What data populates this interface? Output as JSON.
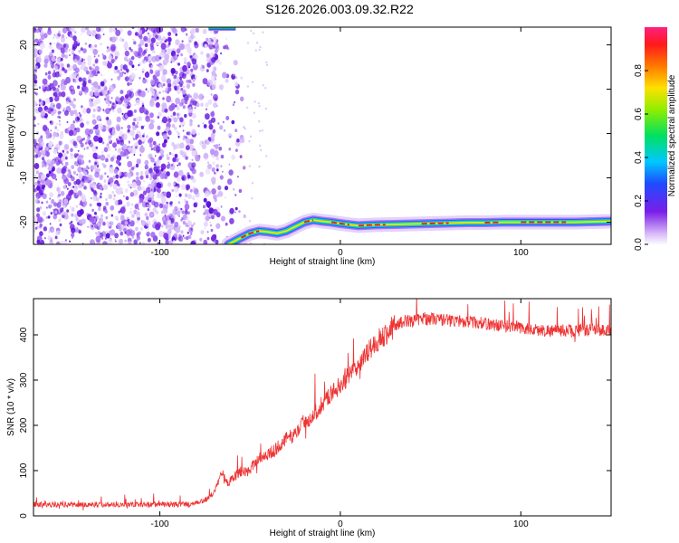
{
  "title": "S126.2026.003.09.32.R22",
  "chart_data": [
    {
      "type": "heatmap",
      "name": "spectrogram",
      "xlabel": "Height of straight line (km)",
      "ylabel": "Frequency (Hz)",
      "xlim": [
        -170,
        150
      ],
      "ylim": [
        -25,
        24
      ],
      "xticks": [
        -100,
        0,
        100
      ],
      "yticks": [
        -20,
        -10,
        0,
        10,
        20
      ],
      "noise_region_x": [
        -170,
        -68
      ],
      "signal_trace": {
        "x": [
          -62,
          -55,
          -50,
          -45,
          -40,
          -35,
          -30,
          -25,
          -20,
          -15,
          -10,
          -5,
          0,
          10,
          20,
          30,
          40,
          50,
          60,
          70,
          80,
          90,
          100,
          110,
          120,
          130,
          140,
          150
        ],
        "y": [
          -25,
          -23.5,
          -22.5,
          -22,
          -22.2,
          -22.5,
          -22,
          -21,
          -20,
          -19.5,
          -19.8,
          -20,
          -20.3,
          -20.8,
          -20.6,
          -20.5,
          -20.4,
          -20.3,
          -20.2,
          -20.1,
          -20.1,
          -20,
          -20,
          -20,
          -20,
          -20,
          -19.9,
          -19.8
        ]
      },
      "colorbar": {
        "label": "Normalized spectral amplitude",
        "range": [
          0,
          1
        ],
        "ticks": [
          "0.0",
          "0.2",
          "0.4",
          "0.6",
          "0.8"
        ]
      }
    },
    {
      "type": "line",
      "name": "snr",
      "xlabel": "Height of straight line (km)",
      "ylabel": "SNR (10 * v/v)",
      "xlim": [
        -170,
        150
      ],
      "ylim": [
        0,
        480
      ],
      "xticks": [
        -100,
        0,
        100
      ],
      "yticks": [
        0,
        100,
        200,
        300,
        400
      ],
      "color": "#ee3333",
      "series": {
        "x": [
          -170,
          -150,
          -130,
          -110,
          -90,
          -80,
          -75,
          -70,
          -67,
          -65,
          -63,
          -60,
          -55,
          -50,
          -45,
          -40,
          -35,
          -30,
          -25,
          -20,
          -15,
          -10,
          -5,
          0,
          5,
          10,
          15,
          20,
          25,
          30,
          35,
          40,
          45,
          50,
          60,
          70,
          80,
          90,
          100,
          110,
          120,
          130,
          140,
          150
        ],
        "y": [
          25,
          25,
          25,
          25,
          25,
          27,
          35,
          50,
          90,
          100,
          70,
          85,
          95,
          100,
          130,
          135,
          150,
          170,
          180,
          210,
          220,
          250,
          270,
          290,
          310,
          330,
          360,
          385,
          400,
          420,
          430,
          432,
          435,
          436,
          432,
          430,
          425,
          420,
          415,
          410,
          410,
          410,
          410,
          410
        ]
      }
    }
  ]
}
